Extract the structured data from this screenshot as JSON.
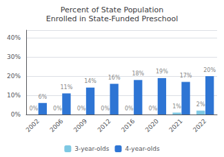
{
  "chart_data": {
    "type": "bar",
    "title": "Percent of State Population\nEnrolled in State-Funded Preschool",
    "categories": [
      "2002",
      "2006",
      "2009",
      "2012",
      "2016",
      "2020",
      "2021",
      "2022"
    ],
    "series": [
      {
        "name": "3-year-olds",
        "color": "#7ec8e3",
        "values": [
          0,
          0,
          0,
          0,
          0,
          0,
          1,
          2
        ],
        "value_labels": [
          "0%",
          "0%",
          "0%",
          "0%",
          "0%",
          "0%",
          "1%",
          "2%"
        ]
      },
      {
        "name": "4-year-olds",
        "color": "#2e75d4",
        "values": [
          6,
          11,
          14,
          16,
          18,
          19,
          17,
          20
        ],
        "value_labels": [
          "6%",
          "11%",
          "14%",
          "16%",
          "18%",
          "19%",
          "17%",
          "20%"
        ]
      }
    ],
    "ylim": [
      0,
      44
    ],
    "yticks": [
      {
        "value": 0,
        "label": "0%"
      },
      {
        "value": 10,
        "label": "10%"
      },
      {
        "value": 20,
        "label": "20%"
      },
      {
        "value": 30,
        "label": "30%"
      },
      {
        "value": 40,
        "label": "40%"
      }
    ],
    "grid": true,
    "data_labels": true,
    "legend": "bottom"
  }
}
